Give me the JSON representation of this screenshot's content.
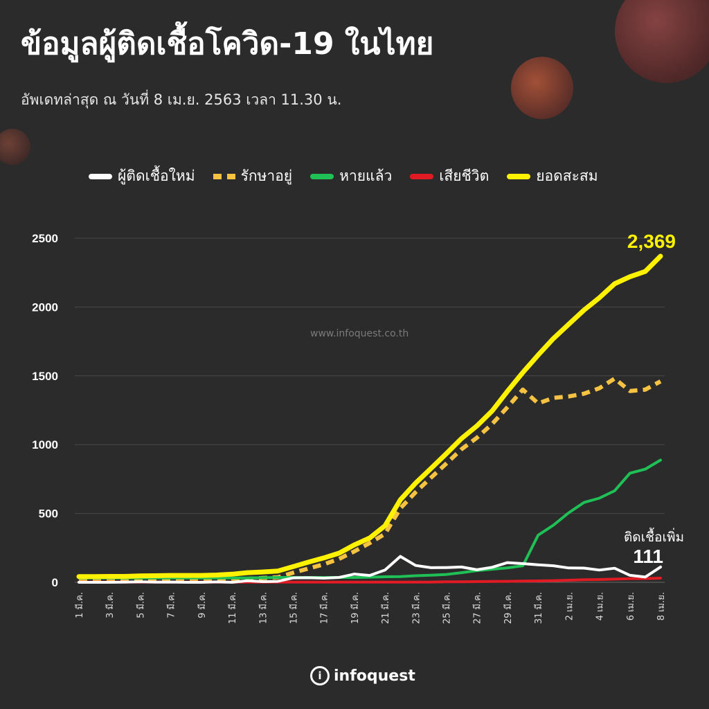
{
  "title": "ข้อมูลผู้ติดเชื้อโควิด-19 ในไทย",
  "subtitle": "อัพเดทล่าสุด ณ วันที่ 8 เม.ย. 2563 เวลา 11.30 น.",
  "watermark": "www.infoquest.co.th",
  "logo": {
    "mark": "i",
    "text": "infoquest"
  },
  "colors": {
    "new_cases": "#ffffff",
    "active": "#f5c242",
    "recovered": "#1fc157",
    "deaths": "#e01b24",
    "cumulative": "#fff200",
    "background": "#2b2b2b",
    "grid": "#4a4a4a"
  },
  "chart_data": {
    "type": "line",
    "ylim": [
      0,
      2500
    ],
    "yticks": [
      0,
      500,
      1000,
      1500,
      2000,
      2500
    ],
    "x": [
      "1 มี.ค.",
      "2 มี.ค.",
      "3 มี.ค.",
      "4 มี.ค.",
      "5 มี.ค.",
      "6 มี.ค.",
      "7 มี.ค.",
      "8 มี.ค.",
      "9 มี.ค.",
      "10 มี.ค.",
      "11 มี.ค.",
      "12 มี.ค.",
      "13 มี.ค.",
      "14 มี.ค.",
      "15 มี.ค.",
      "16 มี.ค.",
      "17 มี.ค.",
      "18 มี.ค.",
      "19 มี.ค.",
      "20 มี.ค.",
      "21 มี.ค.",
      "22 มี.ค.",
      "23 มี.ค.",
      "24 มี.ค.",
      "25 มี.ค.",
      "26 มี.ค.",
      "27 มี.ค.",
      "28 มี.ค.",
      "29 มี.ค.",
      "30 มี.ค.",
      "31 มี.ค.",
      "1 เม.ย.",
      "2 เม.ย.",
      "3 เม.ย.",
      "4 เม.ย.",
      "5 เม.ย.",
      "6 เม.ย.",
      "7 เม.ย.",
      "8 เม.ย."
    ],
    "xtick_labels": [
      "1 มี.ค.",
      "",
      "3 มี.ค.",
      "",
      "5 มี.ค.",
      "",
      "7 มี.ค.",
      "",
      "9 มี.ค.",
      "",
      "11 มี.ค.",
      "",
      "13 มี.ค.",
      "",
      "15 มี.ค.",
      "",
      "17 มี.ค.",
      "",
      "19 มี.ค.",
      "",
      "21 มี.ค.",
      "",
      "23 มี.ค.",
      "",
      "25 มี.ค.",
      "",
      "27 มี.ค.",
      "",
      "29 มี.ค.",
      "",
      "31 มี.ค.",
      "",
      "2 เม.ย.",
      "",
      "4 เม.ย.",
      "",
      "6 เม.ย.",
      "",
      "8 เม.ย."
    ],
    "series": [
      {
        "name": "ผู้ติดเชื้อใหม่",
        "key": "new_cases",
        "style": "solid",
        "values": [
          0,
          0,
          0,
          1,
          4,
          1,
          2,
          0,
          0,
          3,
          0,
          11,
          5,
          7,
          32,
          33,
          30,
          35,
          60,
          50,
          89,
          188,
          122,
          106,
          107,
          111,
          91,
          109,
          143,
          136,
          127,
          120,
          104,
          103,
          89,
          102,
          51,
          38,
          111
        ]
      },
      {
        "name": "รักษาอยู่",
        "key": "active",
        "style": "dashed",
        "values": [
          11,
          11,
          10,
          10,
          14,
          14,
          15,
          14,
          14,
          15,
          15,
          25,
          31,
          36,
          70,
          100,
          131,
          170,
          225,
          285,
          352,
          537,
          655,
          760,
          862,
          967,
          1050,
          1150,
          1272,
          1400,
          1300,
          1340,
          1350,
          1370,
          1410,
          1480,
          1390,
          1400,
          1460
        ]
      },
      {
        "name": "หายแล้ว",
        "key": "recovered",
        "style": "solid",
        "values": [
          31,
          31,
          31,
          31,
          31,
          31,
          31,
          31,
          31,
          31,
          31,
          31,
          33,
          35,
          35,
          35,
          35,
          35,
          35,
          37,
          40,
          42,
          48,
          52,
          57,
          70,
          85,
          95,
          105,
          120,
          342,
          415,
          505,
          580,
          611,
          665,
          793,
          822,
          888
        ]
      },
      {
        "name": "เสียชีวิต",
        "key": "deaths",
        "style": "solid",
        "values": [
          1,
          1,
          1,
          1,
          1,
          1,
          1,
          1,
          1,
          1,
          1,
          1,
          1,
          1,
          1,
          1,
          1,
          1,
          1,
          1,
          1,
          1,
          1,
          1,
          4,
          4,
          5,
          6,
          7,
          9,
          10,
          12,
          15,
          19,
          20,
          23,
          26,
          27,
          30
        ]
      },
      {
        "name": "ยอดสะสม",
        "key": "cumulative",
        "style": "solid",
        "values": [
          42,
          42,
          43,
          43,
          47,
          48,
          50,
          50,
          50,
          53,
          59,
          70,
          75,
          82,
          114,
          147,
          177,
          212,
          272,
          322,
          411,
          599,
          721,
          827,
          934,
          1045,
          1136,
          1245,
          1388,
          1524,
          1651,
          1771,
          1875,
          1978,
          2067,
          2169,
          2220,
          2258,
          2369
        ]
      }
    ],
    "annotations": {
      "cumulative_last": "2,369",
      "new_cases_caption": "ติดเชื้อเพิ่ม",
      "new_cases_last": "111"
    },
    "legend_position": "top",
    "grid": true
  }
}
